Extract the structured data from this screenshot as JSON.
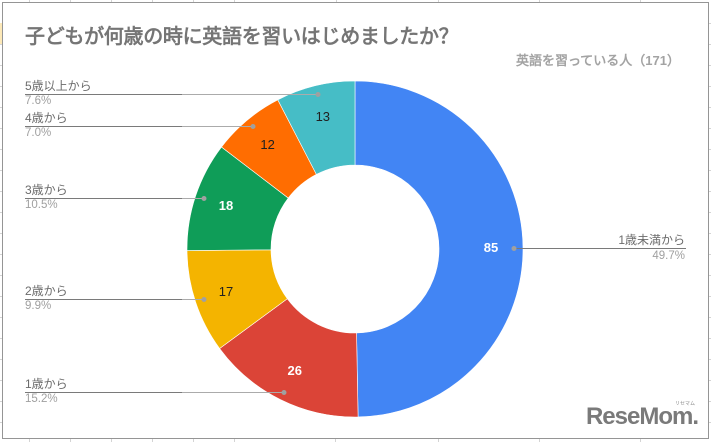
{
  "title": "子どもが何歳の時に英語を習いはじめましたか？",
  "subtitle": "英語を習っている人（171）",
  "watermark": {
    "brand": "ReseMom.",
    "kana": "リセマム"
  },
  "chart_data": {
    "type": "pie",
    "subtype": "donut",
    "title": "子どもが何歳の時に英語を習いはじめましたか？",
    "subtitle": "英語を習っている人（171）",
    "total": 171,
    "start_angle_deg": 0,
    "direction": "clockwise",
    "categories": [
      "1歳未満から",
      "1歳から",
      "2歳から",
      "3歳から",
      "4歳から",
      "5歳以上から"
    ],
    "values": [
      85,
      26,
      17,
      18,
      12,
      13
    ],
    "percentages": [
      "49.7%",
      "15.2%",
      "9.9%",
      "10.5%",
      "7.0%",
      "7.6%"
    ],
    "colors": [
      "#4285F4",
      "#DB4437",
      "#F4B400",
      "#0F9D58",
      "#FF6D01",
      "#46BDC6"
    ],
    "value_label_colors": [
      "#FFFFFF",
      "#FFFFFF",
      "#212121",
      "#FFFFFF",
      "#212121",
      "#212121"
    ],
    "legend_position": "labeled leader lines",
    "grid": false
  }
}
